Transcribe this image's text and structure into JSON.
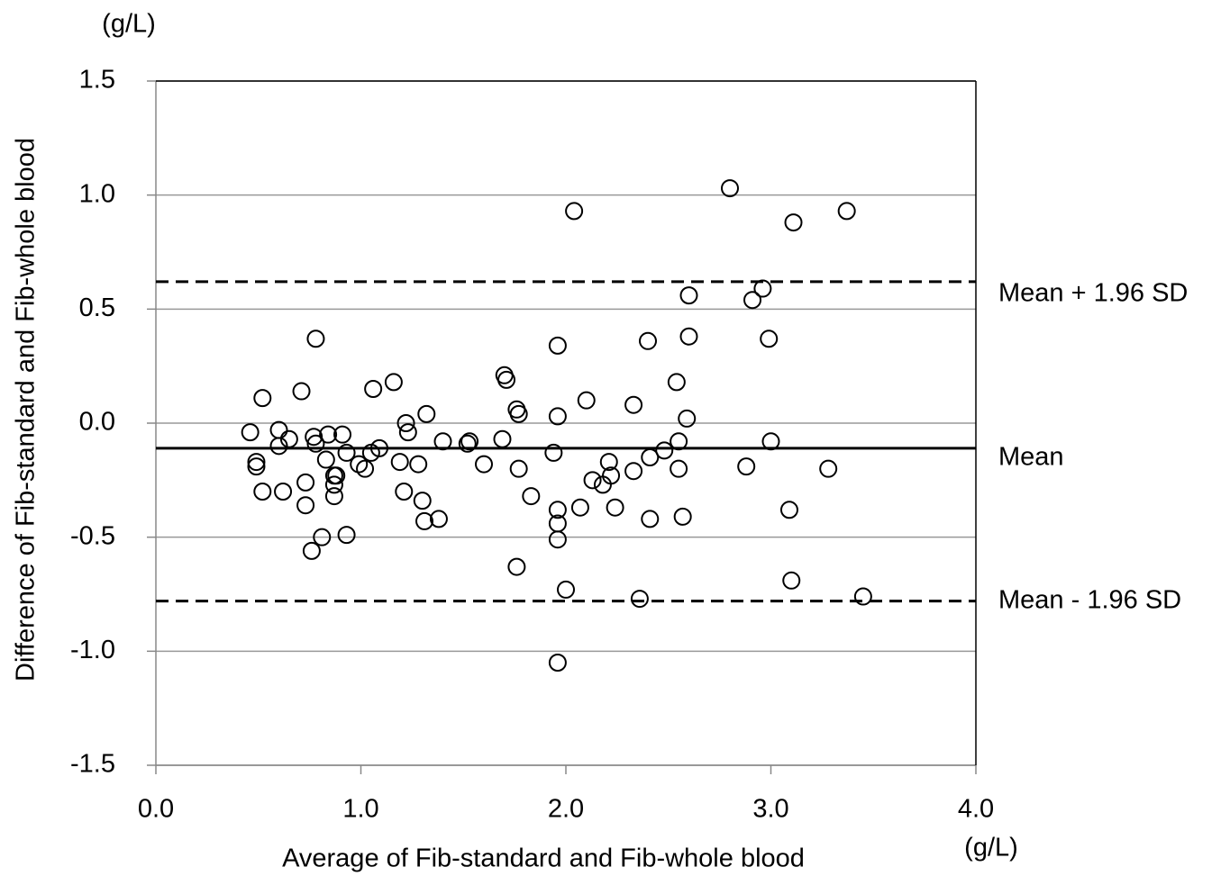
{
  "chart_data": {
    "type": "scatter",
    "y_axis_label": "Difference of Fib-standard and Fib-whole blood",
    "x_axis_label": "Average of Fib-standard and Fib-whole blood",
    "y_unit": "(g/L)",
    "x_unit": "(g/L)",
    "xlim": [
      0,
      4
    ],
    "ylim": [
      -1.5,
      1.5
    ],
    "xticks": [
      {
        "value": 0,
        "label": "0.0"
      },
      {
        "value": 1,
        "label": "1.0"
      },
      {
        "value": 2,
        "label": "2.0"
      },
      {
        "value": 3,
        "label": "3.0"
      },
      {
        "value": 4,
        "label": "4.0"
      }
    ],
    "yticks": [
      -1.5,
      {
        "value": -1,
        "label": "-1.0"
      },
      -0.5,
      {
        "value": 0,
        "label": "0.0"
      },
      0.5,
      {
        "value": 1,
        "label": "1.0"
      },
      1.5
    ],
    "grid": true,
    "color": "#000000",
    "reference_lines": [
      {
        "label": "Mean + 1.96 SD",
        "value": 0.62,
        "style": "dashed"
      },
      {
        "label": "Mean",
        "value": -0.11,
        "style": "solid"
      },
      {
        "label": "Mean - 1.96 SD",
        "value": -0.78,
        "style": "dashed"
      }
    ],
    "x": [
      0.46,
      0.49,
      0.49,
      0.52,
      0.52,
      0.6,
      0.6,
      0.62,
      0.65,
      0.71,
      0.73,
      0.73,
      0.76,
      0.77,
      0.78,
      0.78,
      0.81,
      0.83,
      0.84,
      0.87,
      0.87,
      0.87,
      0.88,
      0.91,
      0.93,
      0.93,
      0.99,
      1.02,
      1.05,
      1.06,
      1.09,
      1.16,
      1.19,
      1.21,
      1.22,
      1.23,
      1.28,
      1.3,
      1.31,
      1.32,
      1.38,
      1.4,
      1.52,
      1.53,
      1.6,
      1.69,
      1.7,
      1.71,
      1.76,
      1.77,
      1.77,
      1.76,
      1.83,
      1.94,
      1.96,
      1.96,
      1.96,
      1.96,
      1.96,
      1.96,
      2.0,
      2.04,
      2.07,
      2.1,
      2.13,
      2.18,
      2.21,
      2.22,
      2.24,
      2.33,
      2.33,
      2.36,
      2.4,
      2.41,
      2.41,
      2.48,
      2.54,
      2.55,
      2.55,
      2.57,
      2.59,
      2.6,
      2.6,
      2.8,
      2.88,
      2.91,
      2.96,
      2.99,
      3.0,
      3.09,
      3.1,
      3.11,
      3.28,
      3.37,
      3.45
    ],
    "values": [
      -0.04,
      -0.17,
      -0.19,
      0.11,
      -0.3,
      -0.03,
      -0.1,
      -0.3,
      -0.07,
      0.14,
      -0.26,
      -0.36,
      -0.56,
      -0.06,
      -0.09,
      0.37,
      -0.5,
      -0.16,
      -0.05,
      -0.27,
      -0.23,
      -0.32,
      -0.23,
      -0.05,
      -0.13,
      -0.49,
      -0.18,
      -0.2,
      -0.13,
      0.15,
      -0.11,
      0.18,
      -0.17,
      -0.3,
      0.0,
      -0.04,
      -0.18,
      -0.34,
      -0.43,
      0.04,
      -0.42,
      -0.08,
      -0.09,
      -0.08,
      -0.18,
      -0.07,
      0.21,
      0.19,
      0.06,
      0.04,
      -0.2,
      -0.63,
      -0.32,
      -0.13,
      0.03,
      0.34,
      -0.38,
      -0.51,
      -0.44,
      -1.05,
      -0.73,
      0.93,
      -0.37,
      0.1,
      -0.25,
      -0.27,
      -0.17,
      -0.23,
      -0.37,
      0.08,
      -0.21,
      -0.77,
      0.36,
      -0.42,
      -0.15,
      -0.12,
      0.18,
      -0.08,
      -0.2,
      -0.41,
      0.02,
      0.56,
      0.38,
      1.03,
      -0.19,
      0.54,
      0.59,
      0.37,
      -0.08,
      -0.38,
      -0.69,
      0.88,
      -0.2,
      0.93,
      -0.76
    ]
  }
}
